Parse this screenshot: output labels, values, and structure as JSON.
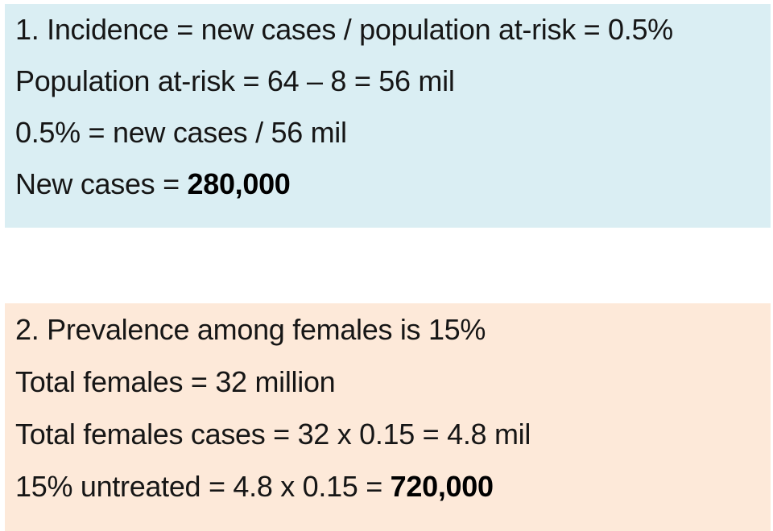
{
  "colors": {
    "incidence_box_bg": "#daeef3",
    "prevalence_box_bg": "#fde9d9",
    "text": "#161616"
  },
  "boxes": [
    {
      "name": "incidence",
      "bg": "#daeef3",
      "lines": [
        {
          "text": "1. Incidence = new cases / population at-risk = 0.5%",
          "bold": ""
        },
        {
          "text": "Population at-risk = 64 – 8 = 56 mil",
          "bold": ""
        },
        {
          "text": "0.5% = new cases / 56 mil",
          "bold": ""
        },
        {
          "text": "New cases = ",
          "bold": "280,000"
        }
      ]
    },
    {
      "name": "prevalence",
      "bg": "#fde9d9",
      "lines": [
        {
          "text": "2. Prevalence among females is 15%",
          "bold": ""
        },
        {
          "text": "Total females = 32 million",
          "bold": ""
        },
        {
          "text": "Total females cases = 32 x 0.15 = 4.8 mil",
          "bold": ""
        },
        {
          "text": "15% untreated = 4.8 x 0.15 = ",
          "bold": "720,000"
        }
      ]
    }
  ]
}
